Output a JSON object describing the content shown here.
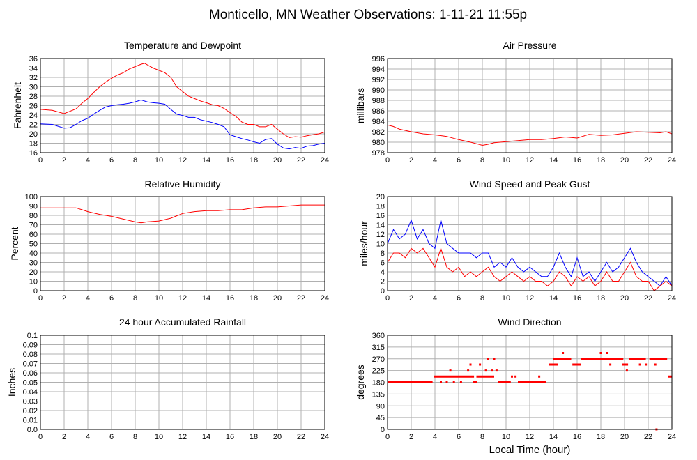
{
  "page_title": "Monticello, MN Weather Observations: 1-11-21 11:55p",
  "x_axis_title": "Local Time (hour)",
  "chart_data": [
    {
      "id": "temp",
      "type": "line",
      "title": "Temperature and Dewpoint",
      "ylabel": "Fahrenheit",
      "xlabel": "",
      "xlim": [
        0,
        24
      ],
      "ylim": [
        16,
        36
      ],
      "xticks": [
        0,
        2,
        4,
        6,
        8,
        10,
        12,
        14,
        16,
        18,
        20,
        22,
        24
      ],
      "yticks": [
        16,
        18,
        20,
        22,
        24,
        26,
        28,
        30,
        32,
        34,
        36
      ],
      "grid": true,
      "series": [
        {
          "color": "#ff0000",
          "x": [
            0,
            1,
            2,
            3,
            3.5,
            4,
            4.5,
            5,
            5.5,
            6,
            6.5,
            7,
            7.5,
            8,
            8.5,
            8.8,
            9,
            9.5,
            10,
            10.5,
            11,
            11.5,
            12,
            12.5,
            13,
            13.5,
            14,
            14.5,
            15,
            15.5,
            16,
            16.5,
            17,
            17.5,
            18,
            18.5,
            19,
            19.5,
            20,
            20.5,
            21,
            21.5,
            22,
            22.5,
            23,
            23.5,
            24
          ],
          "y": [
            25.2,
            25.0,
            24.3,
            25.3,
            26.5,
            27.5,
            28.8,
            30.0,
            31.0,
            31.8,
            32.5,
            33.0,
            33.8,
            34.3,
            34.8,
            35.0,
            34.7,
            34.0,
            33.5,
            33.0,
            32.0,
            30.0,
            29.0,
            28.0,
            27.5,
            27.0,
            26.6,
            26.2,
            26.0,
            25.4,
            24.5,
            23.7,
            22.5,
            22.0,
            22.0,
            21.5,
            21.5,
            22.0,
            21.0,
            20.0,
            19.2,
            19.4,
            19.3,
            19.6,
            19.8,
            20.0,
            20.4
          ]
        },
        {
          "color": "#0000ff",
          "x": [
            0,
            1,
            2,
            2.5,
            3,
            3.5,
            4,
            4.5,
            5,
            5.5,
            6,
            6.5,
            7,
            7.5,
            8,
            8.5,
            9,
            9.5,
            10,
            10.5,
            11,
            11.5,
            12,
            12.5,
            13,
            13.5,
            14,
            14.5,
            15,
            15.5,
            16,
            16.5,
            17,
            17.5,
            18,
            18.5,
            19,
            19.5,
            20,
            20.5,
            21,
            21.5,
            22,
            22.5,
            23,
            23.5,
            24
          ],
          "y": [
            22.1,
            22.0,
            21.2,
            21.3,
            22.0,
            22.8,
            23.3,
            24.2,
            25.0,
            25.7,
            26.0,
            26.2,
            26.3,
            26.5,
            26.8,
            27.2,
            26.8,
            26.6,
            26.5,
            26.3,
            25.2,
            24.2,
            23.9,
            23.5,
            23.5,
            23.0,
            22.7,
            22.4,
            22.0,
            21.5,
            19.8,
            19.4,
            19.0,
            18.7,
            18.3,
            18.0,
            18.8,
            19.0,
            17.8,
            17.0,
            16.8,
            17.1,
            16.9,
            17.4,
            17.5,
            17.8,
            18.0
          ]
        }
      ]
    },
    {
      "id": "pressure",
      "type": "line",
      "title": "Air Pressure",
      "ylabel": "millibars",
      "xlabel": "",
      "xlim": [
        0,
        24
      ],
      "ylim": [
        978,
        996
      ],
      "xticks": [
        0,
        2,
        4,
        6,
        8,
        10,
        12,
        14,
        16,
        18,
        20,
        22,
        24
      ],
      "yticks": [
        978,
        980,
        982,
        984,
        986,
        988,
        990,
        992,
        994,
        996
      ],
      "grid": true,
      "series": [
        {
          "color": "#ff0000",
          "x": [
            0,
            0.5,
            1,
            2,
            3,
            4,
            5,
            6,
            7,
            7.5,
            8,
            8.5,
            9,
            10,
            11,
            12,
            13,
            14,
            15,
            16,
            17,
            18,
            19,
            20,
            21,
            22,
            23,
            23.5,
            24
          ],
          "y": [
            983.3,
            983.0,
            982.5,
            982.0,
            981.6,
            981.4,
            981.1,
            980.5,
            980.0,
            979.7,
            979.4,
            979.6,
            979.9,
            980.1,
            980.3,
            980.5,
            980.5,
            980.7,
            981.0,
            980.8,
            981.5,
            981.3,
            981.4,
            981.7,
            982.0,
            981.9,
            981.8,
            982.0,
            981.6
          ]
        }
      ]
    },
    {
      "id": "humidity",
      "type": "line",
      "title": "Relative Humidity",
      "ylabel": "Percent",
      "xlabel": "",
      "xlim": [
        0,
        24
      ],
      "ylim": [
        0,
        100
      ],
      "xticks": [
        0,
        2,
        4,
        6,
        8,
        10,
        12,
        14,
        16,
        18,
        20,
        22,
        24
      ],
      "yticks": [
        0,
        10,
        20,
        30,
        40,
        50,
        60,
        70,
        80,
        90,
        100
      ],
      "grid": true,
      "series": [
        {
          "color": "#ff0000",
          "x": [
            0,
            1,
            2,
            3,
            3.5,
            4,
            5,
            6,
            7,
            8,
            8.5,
            9,
            10,
            11,
            12,
            13,
            14,
            15,
            16,
            17,
            18,
            19,
            20,
            21,
            22,
            23,
            24
          ],
          "y": [
            88,
            88,
            88,
            88,
            86,
            84,
            81,
            79,
            76,
            73,
            72,
            73,
            74,
            77,
            82,
            84,
            85,
            85,
            86,
            86,
            88,
            89,
            89,
            90,
            91,
            91,
            91
          ]
        }
      ]
    },
    {
      "id": "wind",
      "type": "line",
      "title": "Wind Speed and Peak Gust",
      "ylabel": "miles/hour",
      "xlabel": "",
      "xlim": [
        0,
        24
      ],
      "ylim": [
        0,
        20
      ],
      "xticks": [
        0,
        2,
        4,
        6,
        8,
        10,
        12,
        14,
        16,
        18,
        20,
        22,
        24
      ],
      "yticks": [
        0,
        2,
        4,
        6,
        8,
        10,
        12,
        14,
        16,
        18,
        20
      ],
      "grid": true,
      "series": [
        {
          "color": "#0000ff",
          "x": [
            0,
            0.5,
            1,
            1.5,
            2,
            2.5,
            3,
            3.5,
            4,
            4.5,
            5,
            5.5,
            6,
            6.5,
            7,
            7.5,
            8,
            8.5,
            9,
            9.5,
            10,
            10.5,
            11,
            11.5,
            12,
            12.5,
            13,
            13.5,
            14,
            14.5,
            15,
            15.5,
            16,
            16.5,
            17,
            17.5,
            18,
            18.5,
            19,
            19.5,
            20,
            20.5,
            21,
            21.5,
            22,
            22.5,
            23,
            23.5,
            24
          ],
          "y": [
            10,
            13,
            11,
            12,
            15,
            11,
            13,
            10,
            9,
            15,
            10,
            9,
            8,
            8,
            8,
            7,
            8,
            8,
            5,
            6,
            5,
            7,
            5,
            4,
            5,
            4,
            3,
            3,
            5,
            8,
            5,
            3,
            7,
            3,
            4,
            2,
            4,
            6,
            4,
            5,
            7,
            9,
            6,
            4,
            3,
            2,
            1,
            3,
            1
          ]
        },
        {
          "color": "#ff0000",
          "x": [
            0,
            0.5,
            1,
            1.5,
            2,
            2.5,
            3,
            3.5,
            4,
            4.5,
            5,
            5.5,
            6,
            6.5,
            7,
            7.5,
            8,
            8.5,
            9,
            9.5,
            10,
            10.5,
            11,
            11.5,
            12,
            12.5,
            13,
            13.5,
            14,
            14.5,
            15,
            15.5,
            16,
            16.5,
            17,
            17.5,
            18,
            18.5,
            19,
            19.5,
            20,
            20.5,
            21,
            21.5,
            22,
            22.5,
            23,
            23.5,
            24
          ],
          "y": [
            6,
            8,
            8,
            7,
            9,
            8,
            9,
            7,
            5,
            9,
            5,
            4,
            5,
            3,
            4,
            3,
            4,
            5,
            3,
            2,
            3,
            4,
            3,
            2,
            3,
            2,
            2,
            1,
            2,
            4,
            3,
            1,
            3,
            2,
            3,
            1,
            2,
            4,
            2,
            2,
            4,
            6,
            3,
            2,
            2,
            0,
            1,
            2,
            1
          ]
        }
      ]
    },
    {
      "id": "rain",
      "type": "line",
      "title": "24 hour Accumulated Rainfall",
      "ylabel": "Inches",
      "xlabel": "",
      "xlim": [
        0,
        24
      ],
      "ylim": [
        0,
        0.1
      ],
      "xticks": [
        0,
        2,
        4,
        6,
        8,
        10,
        12,
        14,
        16,
        18,
        20,
        22,
        24
      ],
      "yticks": [
        "0.0",
        "0.01",
        "0.02",
        "0.03",
        "0.04",
        "0.05",
        "0.06",
        "0.07",
        "0.08",
        "0.09",
        "0.1"
      ],
      "grid": true,
      "series": [
        {
          "color": "#ff0000",
          "x": [
            0,
            24
          ],
          "y": [
            0,
            0
          ]
        }
      ]
    },
    {
      "id": "direction",
      "type": "scatter",
      "title": "Wind Direction",
      "ylabel": "degrees",
      "xlabel": "Local Time (hour)",
      "xlim": [
        0,
        24
      ],
      "ylim": [
        0,
        360
      ],
      "xticks": [
        0,
        2,
        4,
        6,
        8,
        10,
        12,
        14,
        16,
        18,
        20,
        22,
        24
      ],
      "yticks": [
        0,
        45,
        90,
        135,
        180,
        225,
        270,
        315,
        360
      ],
      "grid": true,
      "series": [
        {
          "color": "#ff0000",
          "runs": [
            {
              "x0": 0,
              "x1": 3.8,
              "y": 180
            },
            {
              "x0": 3.9,
              "x1": 7.3,
              "y": 202
            },
            {
              "x0": 7.5,
              "x1": 9.0,
              "y": 202
            },
            {
              "x0": 9.3,
              "x1": 10.4,
              "y": 180
            },
            {
              "x0": 11.0,
              "x1": 13.4,
              "y": 180
            },
            {
              "x0": 13.6,
              "x1": 14.4,
              "y": 248
            },
            {
              "x0": 14.0,
              "x1": 15.5,
              "y": 270
            },
            {
              "x0": 15.6,
              "x1": 16.3,
              "y": 248
            },
            {
              "x0": 16.3,
              "x1": 19.9,
              "y": 270
            },
            {
              "x0": 19.8,
              "x1": 20.3,
              "y": 248
            },
            {
              "x0": 20.4,
              "x1": 21.8,
              "y": 270
            },
            {
              "x0": 22.1,
              "x1": 23.6,
              "y": 270
            },
            {
              "x0": 23.7,
              "x1": 24,
              "y": 202
            }
          ],
          "points": [
            [
              4.5,
              180
            ],
            [
              5.0,
              180
            ],
            [
              5.3,
              225
            ],
            [
              5.6,
              180
            ],
            [
              6.2,
              180
            ],
            [
              6.8,
              225
            ],
            [
              7.0,
              248
            ],
            [
              7.3,
              180
            ],
            [
              7.5,
              180
            ],
            [
              7.8,
              248
            ],
            [
              8.3,
              225
            ],
            [
              8.5,
              270
            ],
            [
              8.8,
              225
            ],
            [
              9.0,
              270
            ],
            [
              9.2,
              225
            ],
            [
              10.5,
              202
            ],
            [
              10.8,
              202
            ],
            [
              12.8,
              202
            ],
            [
              14.0,
              248
            ],
            [
              14.8,
              292
            ],
            [
              16.0,
              248
            ],
            [
              18.0,
              292
            ],
            [
              18.5,
              292
            ],
            [
              18.8,
              248
            ],
            [
              20.2,
              225
            ],
            [
              21.3,
              248
            ],
            [
              21.8,
              248
            ],
            [
              22.7,
              0
            ],
            [
              22.6,
              248
            ]
          ]
        }
      ]
    }
  ]
}
